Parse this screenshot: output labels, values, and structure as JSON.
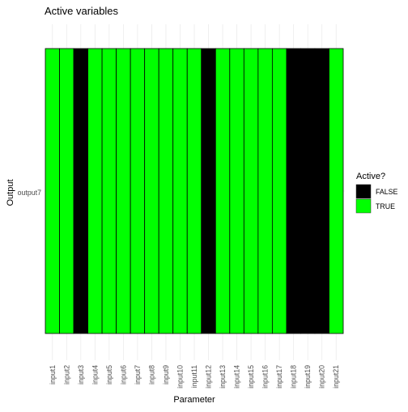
{
  "chart_data": {
    "type": "heatmap",
    "title": "Active variables",
    "xlabel": "Parameter",
    "ylabel": "Output",
    "x": [
      "input1",
      "input2",
      "input3",
      "input4",
      "input5",
      "input6",
      "input7",
      "input8",
      "input9",
      "input10",
      "input11",
      "input12",
      "input13",
      "input14",
      "input15",
      "input16",
      "input17",
      "input18",
      "input19",
      "input20",
      "input21"
    ],
    "y": [
      "output7"
    ],
    "values": [
      [
        true,
        true,
        false,
        true,
        true,
        true,
        true,
        true,
        true,
        true,
        true,
        false,
        true,
        true,
        true,
        true,
        true,
        false,
        false,
        false,
        true
      ]
    ],
    "legend": {
      "title": "Active?",
      "placement": "right",
      "entries": [
        {
          "label": "FALSE",
          "color": "#000000"
        },
        {
          "label": "TRUE",
          "color": "#00FF00"
        }
      ]
    },
    "colors": {
      "true": "#00FF00",
      "false": "#000000",
      "grid": "#EBEBEB",
      "text": "#4D4D4D"
    },
    "grid": true
  }
}
